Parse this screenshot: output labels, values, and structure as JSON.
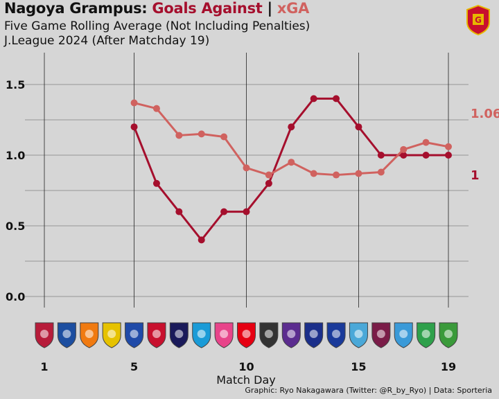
{
  "header": {
    "title_team": "Nagoya Grampus:",
    "title_metric": "Goals Against",
    "title_sep": "|",
    "title_xga": "xGA",
    "subtitle1": "Five Game Rolling Average (Not Including Penalties)",
    "subtitle2": "J.League 2024 (After Matchday 19)"
  },
  "credit": "Graphic: Ryo Nakagawara (Twitter: @R_by_Ryo) | Data: Sporteria",
  "colors": {
    "ga": "#a50f2d",
    "xga": "#d0625f",
    "background": "#d6d6d6"
  },
  "chart_data": {
    "type": "line",
    "xlabel": "Match Day",
    "ylabel": "",
    "xlim": [
      1,
      19
    ],
    "ylim": [
      0,
      1.6
    ],
    "x_ticks": [
      1,
      5,
      10,
      15,
      19
    ],
    "y_ticks": [
      "0.0",
      "0.5",
      "1.0",
      "1.5"
    ],
    "y_tick_values": [
      0,
      0.5,
      1.0,
      1.5
    ],
    "grid": true,
    "series": [
      {
        "key": "ga",
        "color": "#a50f2d",
        "x": [
          5,
          6,
          7,
          8,
          9,
          10,
          11,
          12,
          13,
          14,
          15,
          16,
          17,
          18,
          19
        ],
        "values": [
          1.2,
          0.8,
          0.6,
          0.4,
          0.6,
          0.6,
          0.8,
          1.2,
          1.4,
          1.4,
          1.2,
          1.0,
          1.0,
          1.0,
          1.0
        ],
        "end_label": "1"
      },
      {
        "key": "xga",
        "color": "#d0625f",
        "x": [
          5,
          6,
          7,
          8,
          9,
          10,
          11,
          12,
          13,
          14,
          15,
          16,
          17,
          18,
          19
        ],
        "values": [
          1.37,
          1.33,
          1.14,
          1.15,
          1.13,
          0.91,
          0.86,
          0.95,
          0.87,
          0.86,
          0.87,
          0.88,
          1.04,
          1.09,
          1.06
        ],
        "end_label": "1.06"
      }
    ],
    "opponent_badges": [
      "kashima-badge",
      "machida-badge",
      "niigata-badge",
      "kashiwa-badge",
      "yokohama-fm-badge",
      "sapporo-badge",
      "fukuoka-badge",
      "iwata-badge",
      "cerezo-badge",
      "urawa-badge",
      "kobe-badge",
      "hiroshima-badge",
      "gamba-badge",
      "tokyo-badge",
      "sagan-badge",
      "kyoto-badge",
      "kawasaki-badge",
      "shonan-badge",
      "verdy-badge"
    ]
  }
}
